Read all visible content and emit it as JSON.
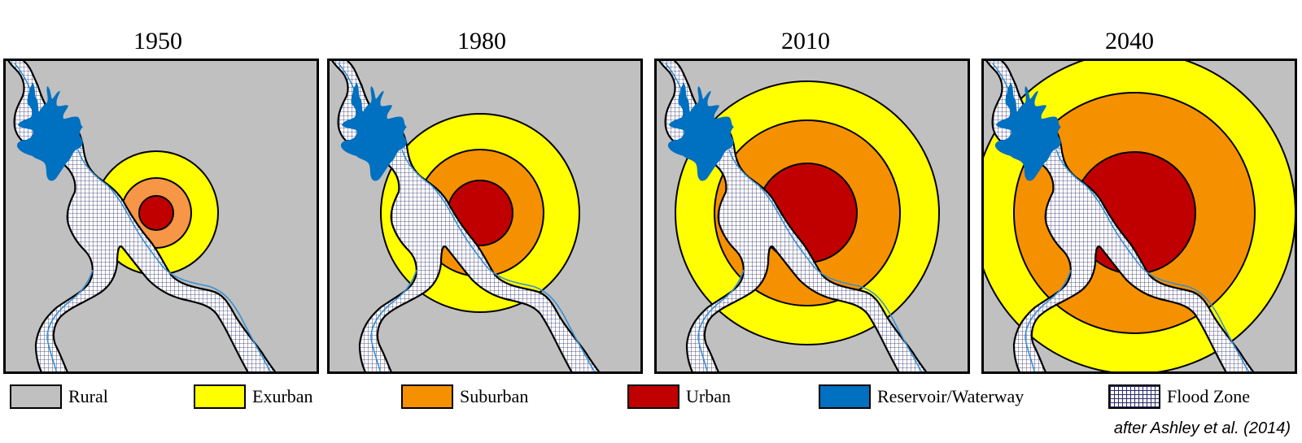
{
  "panels": [
    {
      "year": "1950",
      "rings": [
        {
          "class": "Exurban",
          "r": 76
        },
        {
          "class": "Suburban",
          "r": 43
        },
        {
          "class": "Urban",
          "r": 21
        }
      ]
    },
    {
      "year": "1980",
      "rings": [
        {
          "class": "Exurban",
          "r": 122
        },
        {
          "class": "Suburban",
          "r": 78
        },
        {
          "class": "Urban",
          "r": 40
        }
      ]
    },
    {
      "year": "2010",
      "rings": [
        {
          "class": "Exurban",
          "r": 162
        },
        {
          "class": "Suburban",
          "r": 114
        },
        {
          "class": "Urban",
          "r": 61
        }
      ]
    },
    {
      "year": "2040",
      "rings": [
        {
          "class": "Exurban",
          "r": 198
        },
        {
          "class": "Suburban",
          "r": 148
        },
        {
          "class": "Urban",
          "r": 75
        }
      ]
    }
  ],
  "legend": [
    {
      "label": "Rural",
      "color": "#c0c0c0"
    },
    {
      "label": "Exurban",
      "color": "#ffff00"
    },
    {
      "label": "Suburban",
      "color": "#f59100"
    },
    {
      "label": "Urban",
      "color": "#c00000"
    },
    {
      "label": "Reservoir/Waterway",
      "color": "#0070c0"
    },
    {
      "label": "Flood Zone",
      "color": "pattern"
    }
  ],
  "colors": {
    "Rural": "#c0c0c0",
    "Exurban": "#ffff00",
    "Suburban": "#f59100",
    "Suburban1950": "#f79646",
    "Urban": "#c00000",
    "Water": "#0070c0"
  },
  "credit": "after Ashley et al. (2014)"
}
